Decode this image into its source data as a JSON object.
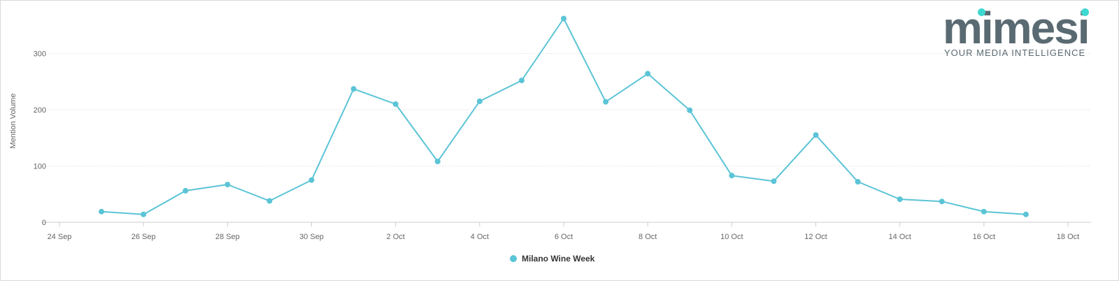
{
  "brand": {
    "name": "mimesi",
    "tagline": "YOUR MEDIA INTELLIGENCE",
    "text_color": "#5a6a72",
    "accent_color": "#3ed8d0"
  },
  "chart_data": {
    "type": "line",
    "ylabel": "Mention Volume",
    "xlim": [
      "2023-09-24",
      "2023-10-18"
    ],
    "ylim": [
      0,
      380
    ],
    "y_ticks": [
      0,
      100,
      200,
      300
    ],
    "y_tick_labels": [
      "0",
      "100",
      "200",
      "300"
    ],
    "x_tick_labels": [
      "24 Sep",
      "26 Sep",
      "28 Sep",
      "30 Sep",
      "2 Oct",
      "4 Oct",
      "6 Oct",
      "8 Oct",
      "10 Oct",
      "12 Oct",
      "14 Oct",
      "16 Oct",
      "18 Oct"
    ],
    "x_tick_dates": [
      "2023-09-24",
      "2023-09-26",
      "2023-09-28",
      "2023-09-30",
      "2023-10-02",
      "2023-10-04",
      "2023-10-06",
      "2023-10-08",
      "2023-10-10",
      "2023-10-12",
      "2023-10-14",
      "2023-10-16",
      "2023-10-18"
    ],
    "grid": true,
    "legend_position": "bottom-center",
    "series": [
      {
        "name": "Milano Wine Week",
        "color": "#5bc4d6",
        "x": [
          "2023-09-25",
          "2023-09-26",
          "2023-09-27",
          "2023-09-28",
          "2023-09-29",
          "2023-09-30",
          "2023-10-01",
          "2023-10-02",
          "2023-10-03",
          "2023-10-04",
          "2023-10-05",
          "2023-10-06",
          "2023-10-07",
          "2023-10-08",
          "2023-10-09",
          "2023-10-10",
          "2023-10-11",
          "2023-10-12",
          "2023-10-13",
          "2023-10-14",
          "2023-10-15",
          "2023-10-16",
          "2023-10-17"
        ],
        "values": [
          19,
          14,
          56,
          67,
          38,
          75,
          237,
          210,
          108,
          215,
          252,
          362,
          214,
          264,
          199,
          83,
          73,
          155,
          72,
          41,
          37,
          19,
          14
        ]
      }
    ]
  }
}
